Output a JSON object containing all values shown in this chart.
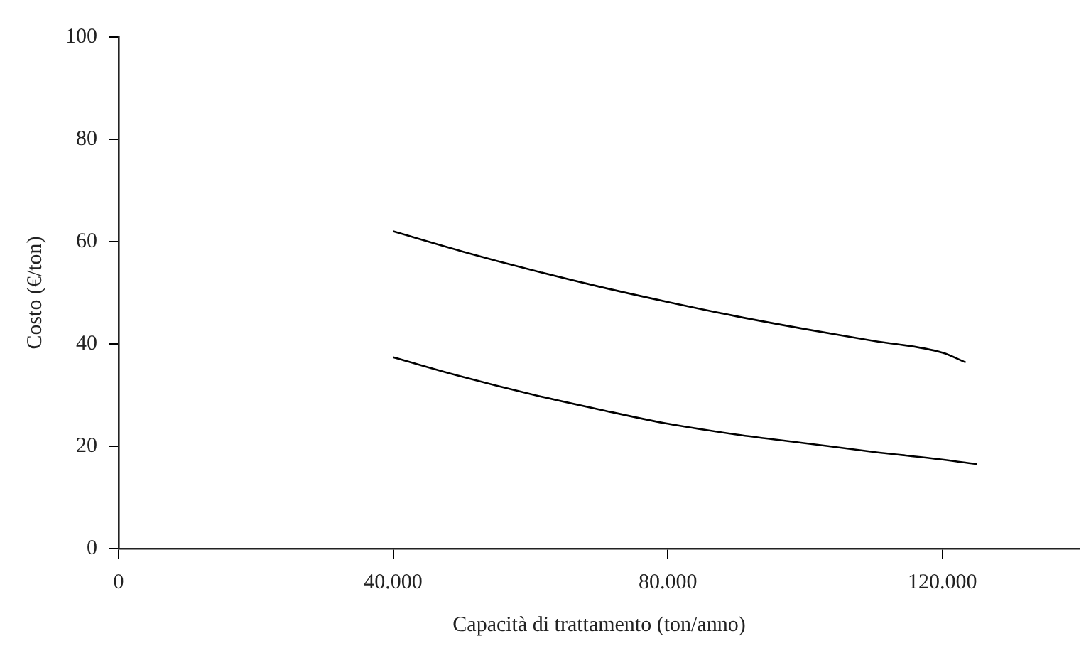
{
  "chart_data": {
    "type": "line",
    "xlabel": "Capacità di trattamento (ton/anno)",
    "ylabel": "Costo (€/ton)",
    "series": [
      {
        "color": "#000000",
        "x": [
          40000,
          50000,
          60000,
          70000,
          80000,
          90000,
          100000,
          110000,
          120000,
          123400
        ],
        "values": [
          62,
          58.1,
          54.5,
          51.2,
          48.2,
          45.4,
          42.9,
          40.6,
          38.3,
          36.4
        ]
      },
      {
        "color": "#000000",
        "x": [
          40000,
          50000,
          60000,
          70000,
          80000,
          90000,
          100000,
          110000,
          120000,
          125000
        ],
        "values": [
          37.4,
          33.6,
          30.2,
          27.2,
          24.4,
          22.3,
          20.6,
          18.9,
          17.4,
          16.5
        ]
      }
    ],
    "xlim": [
      0,
      140000
    ],
    "xticks": [
      0,
      {
        "value": 40000,
        "label": "40.000"
      },
      {
        "value": 80000,
        "label": "80.000"
      },
      {
        "value": 120000,
        "label": "120.000"
      }
    ],
    "ylim": [
      0,
      100
    ],
    "yticks": [
      0,
      20,
      40,
      60,
      80,
      100
    ],
    "grid": false,
    "legend": false,
    "marker": "none",
    "line_style": "solid"
  }
}
